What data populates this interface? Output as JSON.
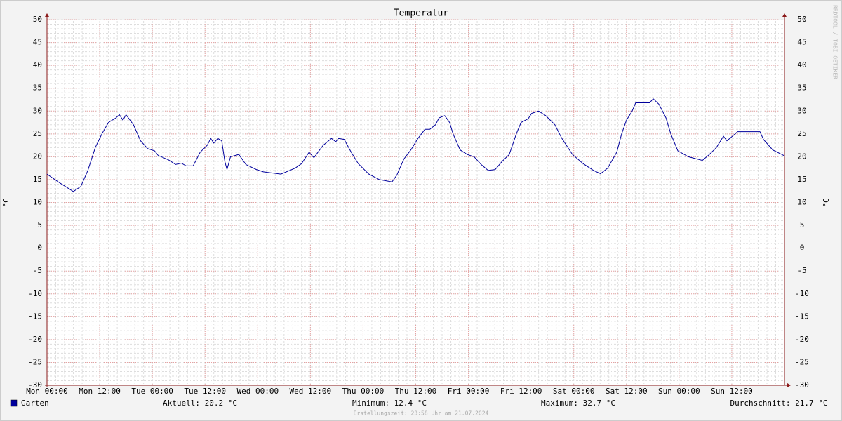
{
  "chart_data": {
    "type": "line",
    "title": "Temperatur",
    "y_label": "°C",
    "y2_label": "°C",
    "watermark": "RRDTOOL / TOBI OETIKER",
    "footer": "Erstellungszeit: 23:58 Uhr am 21.07.2024",
    "xlim": [
      0,
      168
    ],
    "xticks": [
      {
        "value": 0,
        "label": "Mon 00:00"
      },
      {
        "value": 12,
        "label": "Mon 12:00"
      },
      {
        "value": 24,
        "label": "Tue 00:00"
      },
      {
        "value": 36,
        "label": "Tue 12:00"
      },
      {
        "value": 48,
        "label": "Wed 00:00"
      },
      {
        "value": 60,
        "label": "Wed 12:00"
      },
      {
        "value": 72,
        "label": "Thu 00:00"
      },
      {
        "value": 84,
        "label": "Thu 12:00"
      },
      {
        "value": 96,
        "label": "Fri 00:00"
      },
      {
        "value": 108,
        "label": "Fri 12:00"
      },
      {
        "value": 120,
        "label": "Sat 00:00"
      },
      {
        "value": 132,
        "label": "Sat 12:00"
      },
      {
        "value": 144,
        "label": "Sun 00:00"
      },
      {
        "value": 156,
        "label": "Sun 12:00"
      }
    ],
    "ylim": [
      -30,
      50
    ],
    "yticks": [
      -30,
      -25,
      -20,
      -15,
      -10,
      -5,
      0,
      5,
      10,
      15,
      20,
      25,
      30,
      35,
      40,
      45,
      50
    ],
    "grid": true,
    "series": [
      {
        "name": "Garten",
        "color": "#00009c",
        "x": [
          0,
          3,
          6,
          7.7,
          9.3,
          11,
          12.5,
          14,
          15.7,
          16.5,
          17.3,
          18,
          19.7,
          21.3,
          22.9,
          24.5,
          25.3,
          27.7,
          29.3,
          30.6,
          31.7,
          33.3,
          34.9,
          36.5,
          37.3,
          38,
          38.9,
          39.8,
          40.5,
          41,
          41.8,
          43.7,
          45.3,
          47.7,
          49.3,
          53.3,
          56.5,
          58,
          59.7,
          60.8,
          62.9,
          64.8,
          65.8,
          66.4,
          67.7,
          69.3,
          70.9,
          73.3,
          75.7,
          78.6,
          79.7,
          81.3,
          82.9,
          84.5,
          86.1,
          87.2,
          88.5,
          89.3,
          90.6,
          91.7,
          92.5,
          94.1,
          95.7,
          97.3,
          98.9,
          100.5,
          102.1,
          103.7,
          105.3,
          106.9,
          108,
          109.6,
          110.4,
          112,
          113.6,
          115.7,
          117.3,
          119.7,
          122.1,
          124.5,
          126.1,
          127.7,
          129.8,
          130.9,
          132,
          133.3,
          134.1,
          137.3,
          138.1,
          139.4,
          141,
          142.1,
          143.7,
          146.1,
          149.3,
          150.9,
          152.5,
          154.1,
          154.9,
          156.5,
          157.3,
          162.4,
          163.2,
          165.3,
          168
        ],
        "values": [
          16.2,
          14.2,
          12.4,
          13.5,
          17,
          22,
          25,
          27.5,
          28.5,
          29.2,
          28,
          29.2,
          27,
          23.5,
          21.8,
          21.3,
          20.3,
          19.3,
          18.3,
          18.6,
          18,
          18,
          21,
          22.5,
          24,
          23,
          24,
          23.5,
          19,
          17.2,
          20,
          20.5,
          18.3,
          17.2,
          16.7,
          16.2,
          17.5,
          18.5,
          21,
          19.8,
          22.5,
          24,
          23.3,
          24,
          23.8,
          21,
          18.5,
          16.2,
          15,
          14.5,
          16,
          19.5,
          21.5,
          24,
          26,
          26,
          27,
          28.5,
          29,
          27.5,
          25,
          21.5,
          20.5,
          20,
          18.3,
          17,
          17.2,
          19,
          20.5,
          25,
          27.5,
          28.3,
          29.5,
          30,
          29,
          27,
          24,
          20.5,
          18.5,
          17,
          16.3,
          17.5,
          21,
          25,
          28,
          30,
          31.8,
          31.8,
          32.7,
          31.5,
          28.5,
          25,
          21.3,
          20,
          19.2,
          20.5,
          22,
          24.5,
          23.5,
          24.8,
          25.5,
          25.5,
          23.8,
          21.5,
          20.2
        ]
      }
    ],
    "stats": [
      "Aktuell: 20.2 °C",
      "Minimum: 12.4 °C",
      "Maximum: 32.7 °C",
      "Durchschnitt: 21.7 °C"
    ]
  }
}
